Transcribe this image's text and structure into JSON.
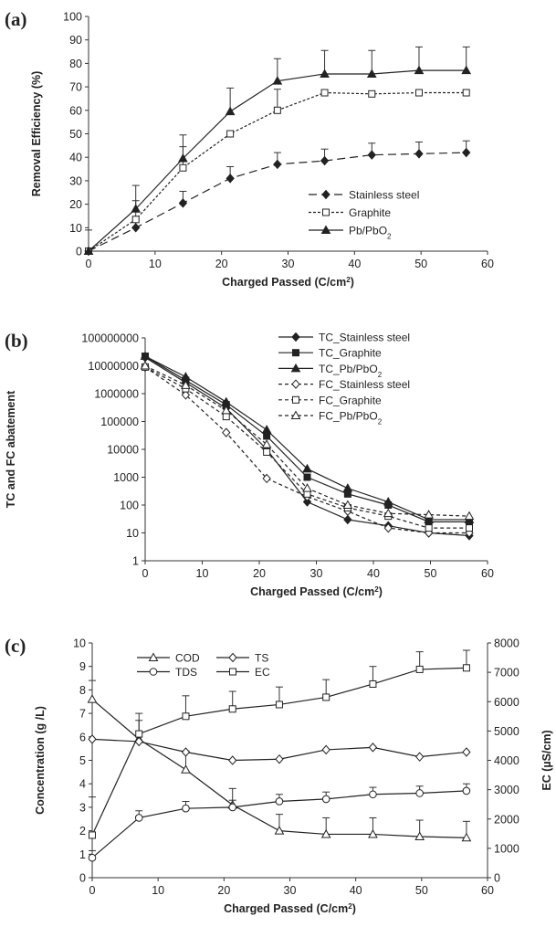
{
  "chart_data": [
    {
      "panel": "(a)",
      "type": "line",
      "xlabel": "Charged Passed (C/cm²)",
      "ylabel": "Removal Efficiency (%)",
      "xlim": [
        0,
        60
      ],
      "ylim": [
        0,
        100
      ],
      "xticks": [
        0,
        10,
        20,
        30,
        40,
        50,
        60
      ],
      "yticks": [
        0,
        10,
        20,
        30,
        40,
        50,
        60,
        70,
        80,
        90,
        100
      ],
      "grid": false,
      "legend": "center-right",
      "x": [
        0,
        7.1,
        14.2,
        21.3,
        28.4,
        35.5,
        42.6,
        49.7,
        56.8
      ],
      "series": [
        {
          "name": "Stainless steel",
          "style": "longdash",
          "marker": "diamond-filled",
          "values": [
            0,
            10,
            20.5,
            31,
            37,
            38.5,
            41,
            41.5,
            42
          ],
          "err": [
            9,
            4,
            5,
            5,
            5,
            5,
            5,
            5,
            5
          ]
        },
        {
          "name": "Graphite",
          "style": "dotted",
          "marker": "square-open",
          "values": [
            0,
            13.5,
            35.5,
            50,
            60,
            67.5,
            67,
            67.5,
            67.5
          ],
          "err": [
            0,
            8,
            9,
            0,
            9,
            0,
            0,
            0,
            0
          ]
        },
        {
          "name": "Pb/PbO2",
          "style": "solid",
          "marker": "triangle-filled",
          "values": [
            0,
            18,
            39.5,
            59.5,
            72.5,
            75.5,
            75.5,
            77,
            77
          ],
          "err": [
            0,
            10,
            10,
            10,
            9.5,
            10,
            10,
            10,
            10
          ]
        }
      ]
    },
    {
      "panel": "(b)",
      "type": "line",
      "yscale": "log",
      "xlabel": "Charged Passed (C/cm²)",
      "ylabel": "TC and FC abatement",
      "xlim": [
        0,
        60
      ],
      "ylim": [
        1,
        100000000
      ],
      "xticks": [
        0,
        10,
        20,
        30,
        40,
        50,
        60
      ],
      "yticks": [
        1,
        10,
        100,
        1000,
        10000,
        100000,
        1000000,
        10000000,
        100000000
      ],
      "ytick_labels": [
        "1",
        "10",
        "100",
        "1000",
        "10000",
        "100000",
        "1000000",
        "10000000",
        "100000000"
      ],
      "grid": false,
      "legend": "right",
      "x": [
        0,
        7.1,
        14.2,
        21.3,
        28.4,
        35.5,
        42.6,
        49.7,
        56.8
      ],
      "series": [
        {
          "name": "TC_Stainless steel",
          "style": "solid",
          "marker": "diamond-filled",
          "values": [
            20000000,
            2500000,
            300000,
            10000,
            130,
            30,
            18,
            10,
            8
          ]
        },
        {
          "name": "TC_Graphite",
          "style": "solid",
          "marker": "square-filled",
          "values": [
            22000000,
            3000000,
            400000,
            30000,
            1000,
            250,
            100,
            25,
            25
          ]
        },
        {
          "name": "TC_Pb/PbO2",
          "style": "solid",
          "marker": "triangle-filled",
          "values": [
            22000000,
            4000000,
            500000,
            50000,
            2000,
            400,
            130,
            30,
            30
          ]
        },
        {
          "name": "FC_Stainless steel",
          "style": "dashed",
          "marker": "diamond-open",
          "values": [
            9000000,
            900000,
            40000,
            900,
            200,
            60,
            15,
            10,
            10
          ]
        },
        {
          "name": "FC_Graphite",
          "style": "dashed",
          "marker": "square-open",
          "values": [
            9000000,
            1500000,
            150000,
            8000,
            250,
            80,
            40,
            15,
            15
          ]
        },
        {
          "name": "FC_Pb/PbO2",
          "style": "dashed",
          "marker": "triangle-open",
          "values": [
            10000000,
            2000000,
            250000,
            15000,
            400,
            100,
            50,
            45,
            40
          ]
        }
      ]
    },
    {
      "panel": "(c)",
      "type": "line",
      "xlabel": "Charged Passed (C/cm²)",
      "ylabel": "Concentration (g /L)",
      "y2label": "EC (µS/cm)",
      "xlim": [
        0,
        60
      ],
      "ylim": [
        0,
        10
      ],
      "y2lim": [
        0,
        8000
      ],
      "xticks": [
        0,
        10,
        20,
        30,
        40,
        50,
        60
      ],
      "yticks": [
        0,
        1,
        2,
        3,
        4,
        5,
        6,
        7,
        8,
        9,
        10
      ],
      "y2ticks": [
        0,
        1000,
        2000,
        3000,
        4000,
        5000,
        6000,
        7000,
        8000
      ],
      "grid": false,
      "legend": "top-left",
      "x": [
        0,
        7.1,
        14.2,
        21.3,
        28.4,
        35.5,
        42.6,
        49.7,
        56.8
      ],
      "series": [
        {
          "name": "COD",
          "axis": "left",
          "marker": "triangle-open",
          "values": [
            7.6,
            5.9,
            4.6,
            3.1,
            2.0,
            1.85,
            1.85,
            1.75,
            1.7
          ],
          "err": [
            0.8,
            0.8,
            0.8,
            0.7,
            0.7,
            0.7,
            0.7,
            0.7,
            0.7
          ]
        },
        {
          "name": "TS",
          "axis": "left",
          "marker": "diamond-open",
          "values": [
            5.9,
            5.8,
            5.35,
            5.0,
            5.05,
            5.45,
            5.55,
            5.15,
            5.35
          ],
          "err": [
            0,
            0,
            0,
            0,
            0,
            0,
            0,
            0,
            0
          ]
        },
        {
          "name": "TDS",
          "axis": "left",
          "marker": "circle-open",
          "values": [
            0.85,
            2.55,
            2.95,
            3.0,
            3.25,
            3.35,
            3.55,
            3.6,
            3.7
          ],
          "err": [
            0.3,
            0.3,
            0.3,
            0.3,
            0.3,
            0.3,
            0.3,
            0.3,
            0.3
          ]
        },
        {
          "name": "EC",
          "axis": "right",
          "marker": "square-open",
          "values": [
            1450,
            4900,
            5500,
            5750,
            5900,
            6150,
            6600,
            7100,
            7150
          ],
          "err": [
            1300,
            700,
            700,
            600,
            600,
            600,
            600,
            600,
            600
          ]
        }
      ]
    }
  ]
}
